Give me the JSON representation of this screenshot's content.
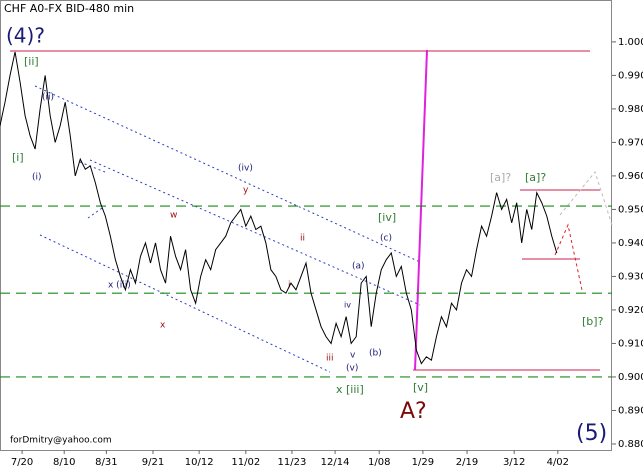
{
  "chart_data": {
    "type": "line",
    "title": "CHF A0-FX BID-480 min",
    "color": "#000000",
    "xlim": [
      0,
      122
    ],
    "ylim": [
      0.8782,
      1.0125
    ],
    "xticks": [
      {
        "value": 4.4,
        "label": "7/20"
      },
      {
        "value": 12.8,
        "label": "8/10"
      },
      {
        "value": 21.2,
        "label": "8/31"
      },
      {
        "value": 30.5,
        "label": "9/21"
      },
      {
        "value": 39.7,
        "label": "10/12"
      },
      {
        "value": 49,
        "label": "11/02"
      },
      {
        "value": 58.2,
        "label": "11/23"
      },
      {
        "value": 66.8,
        "label": "12/14"
      },
      {
        "value": 75.6,
        "label": "1/08"
      },
      {
        "value": 84.3,
        "label": "1/29"
      },
      {
        "value": 93.1,
        "label": "2/19"
      },
      {
        "value": 102.5,
        "label": "3/12"
      },
      {
        "value": 111.2,
        "label": "4/02"
      }
    ],
    "yticks": [
      {
        "value": 1.0,
        "label": "1.000"
      },
      {
        "value": 0.99,
        "label": "0.990"
      },
      {
        "value": 0.98,
        "label": "0.980"
      },
      {
        "value": 0.97,
        "label": "0.970"
      },
      {
        "value": 0.96,
        "label": "0.960"
      },
      {
        "value": 0.95,
        "label": "0.950"
      },
      {
        "value": 0.94,
        "label": "0.940"
      },
      {
        "value": 0.93,
        "label": "0.930"
      },
      {
        "value": 0.92,
        "label": "0.920"
      },
      {
        "value": 0.91,
        "label": "0.910"
      },
      {
        "value": 0.9,
        "label": "0.900"
      },
      {
        "value": 0.89,
        "label": "0.890"
      },
      {
        "value": 0.88,
        "label": "0.880"
      }
    ],
    "levels": [
      0.951,
      0.925,
      0.9
    ],
    "values": [
      0.975,
      0.982,
      0.99,
      0.997,
      0.988,
      0.978,
      0.972,
      0.968,
      0.98,
      0.99,
      0.978,
      0.97,
      0.975,
      0.982,
      0.972,
      0.96,
      0.965,
      0.962,
      0.963,
      0.958,
      0.952,
      0.948,
      0.942,
      0.935,
      0.93,
      0.926,
      0.932,
      0.928,
      0.936,
      0.94,
      0.934,
      0.94,
      0.932,
      0.928,
      0.942,
      0.936,
      0.932,
      0.938,
      0.926,
      0.922,
      0.93,
      0.935,
      0.932,
      0.938,
      0.94,
      0.942,
      0.946,
      0.948,
      0.95,
      0.945,
      0.948,
      0.944,
      0.945,
      0.94,
      0.932,
      0.93,
      0.926,
      0.925,
      0.928,
      0.926,
      0.93,
      0.934,
      0.925,
      0.92,
      0.915,
      0.912,
      0.91,
      0.916,
      0.912,
      0.918,
      0.91,
      0.912,
      0.928,
      0.93,
      0.915,
      0.925,
      0.932,
      0.935,
      0.937,
      0.93,
      0.933,
      0.925,
      0.92,
      0.908,
      0.904,
      0.906,
      0.905,
      0.912,
      0.918,
      0.915,
      0.922,
      0.92,
      0.928,
      0.932,
      0.93,
      0.938,
      0.945,
      0.942,
      0.948,
      0.955,
      0.95,
      0.953,
      0.946,
      0.952,
      0.94,
      0.95,
      0.944,
      0.955,
      0.952,
      0.948,
      0.942,
      0.937
    ],
    "annotations": [
      "(4)?",
      "[ii]",
      "(ii)",
      "[i]",
      "(i)",
      "(iv)",
      "y",
      "w",
      "x",
      "x (iii)",
      "ii",
      "i",
      "[iv]",
      "(c)",
      "(a)",
      "iv",
      "iii",
      "v",
      "(v)",
      "(b)",
      "x [iii]",
      "[v]",
      "A?",
      "[a]?",
      "[a]?",
      "[b]?",
      "(5)",
      "forDmitry@yahoo.com"
    ]
  }
}
